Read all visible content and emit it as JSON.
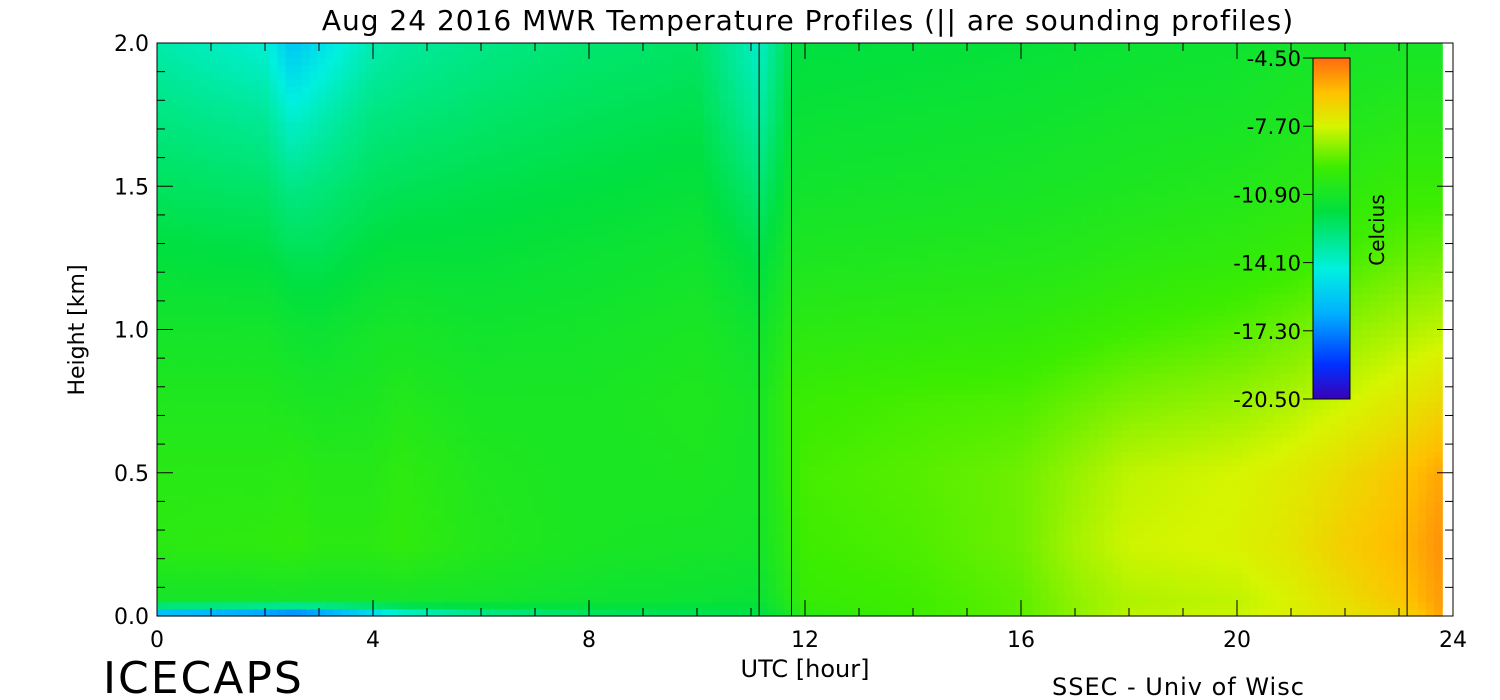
{
  "title": "Aug 24 2016 MWR Temperature Profiles (|| are sounding profiles)",
  "footer_left": "ICECAPS",
  "footer_right": "SSEC - Univ of Wisc",
  "chart_data": {
    "type": "heatmap",
    "title": "Aug 24 2016 MWR Temperature Profiles (|| are sounding profiles)",
    "xlabel": "UTC [hour]",
    "ylabel": "Height [km]",
    "xlim": [
      0,
      24
    ],
    "ylim": [
      0,
      2.0
    ],
    "x_ticks": [
      0,
      4,
      8,
      12,
      16,
      20,
      24
    ],
    "x_tick_labels": [
      "0",
      "4",
      "8",
      "12",
      "16",
      "20",
      "24"
    ],
    "y_ticks": [
      0,
      0.5,
      1.0,
      1.5,
      2.0
    ],
    "y_tick_labels": [
      "0.0",
      "0.5",
      "1.0",
      "1.5",
      "2.0"
    ],
    "data_x_range": [
      0,
      23.8
    ],
    "sounding_profiles_hours": [
      11.15,
      11.75,
      23.15
    ],
    "colorbar": {
      "label": "Celcius",
      "min": -20.5,
      "max": -4.5,
      "ticks": [
        -4.5,
        -7.7,
        -10.9,
        -14.1,
        -17.3,
        -20.5
      ],
      "tick_labels": [
        "-4.50",
        "-7.70",
        "-10.90",
        "-14.10",
        "-17.30",
        "-20.50"
      ],
      "placement": "top-right"
    },
    "temperature_field": {
      "hours": [
        0,
        2,
        2.5,
        3,
        4,
        4.5,
        6,
        8,
        10,
        11.15,
        11.75,
        12,
        14,
        16,
        17,
        18,
        20,
        21,
        22,
        23.15,
        23.8
      ],
      "heights_km": [
        0,
        0.05,
        0.25,
        0.5,
        0.75,
        1.0,
        1.25,
        1.5,
        1.75,
        2.0
      ],
      "values_c": [
        [
          -17.5,
          -11.0,
          -10.2,
          -10.3,
          -10.6,
          -11.0,
          -11.6,
          -12.2,
          -12.8,
          -13.5
        ],
        [
          -18.5,
          -11.0,
          -10.1,
          -10.3,
          -10.6,
          -11.0,
          -11.7,
          -12.4,
          -13.2,
          -14.2
        ],
        [
          -19.0,
          -11.0,
          -10.0,
          -10.2,
          -10.7,
          -11.2,
          -12.0,
          -12.9,
          -14.2,
          -15.8
        ],
        [
          -18.5,
          -11.0,
          -10.2,
          -10.4,
          -10.8,
          -11.3,
          -12.0,
          -12.7,
          -13.7,
          -15.0
        ],
        [
          -16.5,
          -11.0,
          -10.2,
          -10.4,
          -10.7,
          -11.0,
          -11.6,
          -12.2,
          -12.8,
          -13.6
        ],
        [
          -15.0,
          -11.0,
          -10.0,
          -10.1,
          -10.5,
          -10.9,
          -11.5,
          -12.1,
          -12.7,
          -13.3
        ],
        [
          -13.5,
          -11.0,
          -10.5,
          -10.6,
          -10.8,
          -11.1,
          -11.5,
          -11.9,
          -12.4,
          -12.9
        ],
        [
          -12.5,
          -11.2,
          -10.8,
          -10.8,
          -10.8,
          -11.0,
          -11.3,
          -11.7,
          -12.1,
          -12.5
        ],
        [
          -12.2,
          -11.3,
          -10.9,
          -10.7,
          -10.6,
          -10.8,
          -11.1,
          -11.5,
          -11.9,
          -12.3
        ],
        [
          -12.0,
          -11.4,
          -11.0,
          -10.9,
          -10.9,
          -11.2,
          -11.8,
          -12.6,
          -13.4,
          -14.0
        ],
        [
          -11.0,
          -10.3,
          -10.0,
          -9.8,
          -9.8,
          -10.3,
          -10.8,
          -11.2,
          -11.5,
          -11.8
        ],
        [
          -10.2,
          -9.8,
          -9.6,
          -9.5,
          -9.7,
          -10.2,
          -10.7,
          -11.1,
          -11.4,
          -11.7
        ],
        [
          -9.6,
          -9.6,
          -9.4,
          -9.3,
          -9.5,
          -10.1,
          -10.6,
          -11.0,
          -11.3,
          -11.6
        ],
        [
          -9.2,
          -9.2,
          -9.0,
          -9.0,
          -9.4,
          -10.0,
          -10.5,
          -10.9,
          -11.2,
          -11.5
        ],
        [
          -8.6,
          -8.6,
          -8.3,
          -8.5,
          -9.1,
          -9.8,
          -10.4,
          -10.8,
          -11.1,
          -11.4
        ],
        [
          -8.0,
          -8.2,
          -7.8,
          -8.0,
          -8.8,
          -9.6,
          -10.2,
          -10.7,
          -11.0,
          -11.3
        ],
        [
          -7.8,
          -8.0,
          -7.6,
          -7.7,
          -8.5,
          -9.3,
          -10.0,
          -10.5,
          -10.9,
          -11.2
        ],
        [
          -7.5,
          -7.6,
          -7.2,
          -7.4,
          -8.2,
          -9.0,
          -9.8,
          -10.3,
          -10.7,
          -11.0
        ],
        [
          -7.2,
          -7.0,
          -6.5,
          -6.9,
          -7.8,
          -8.6,
          -9.5,
          -10.1,
          -10.6,
          -11.0
        ],
        [
          -6.8,
          -6.2,
          -5.9,
          -6.2,
          -7.2,
          -8.2,
          -9.1,
          -9.8,
          -10.4,
          -10.9
        ],
        [
          -5.5,
          -5.4,
          -5.2,
          -5.6,
          -6.8,
          -8.0,
          -9.0,
          -9.8,
          -10.4,
          -10.9
        ]
      ]
    }
  }
}
